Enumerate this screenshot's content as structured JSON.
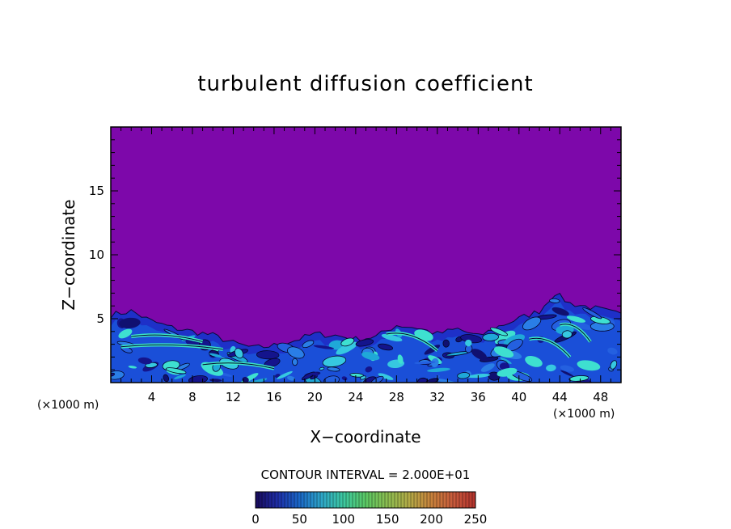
{
  "chart_data": {
    "type": "heatmap",
    "title": "turbulent diffusion coefficient",
    "xlabel": "X−coordinate",
    "ylabel": "Z−coordinate",
    "x_unit": "(×1000 m)",
    "y_unit": "(×1000 m)",
    "xlim": [
      0,
      50
    ],
    "ylim": [
      0,
      20
    ],
    "x_ticks": [
      4,
      8,
      12,
      16,
      20,
      24,
      28,
      32,
      36,
      40,
      44,
      48
    ],
    "y_ticks": [
      5,
      10,
      15
    ],
    "contour_interval_label": "CONTOUR INTERVAL = 2.000E+01",
    "colorbar": {
      "min": 0,
      "max": 250,
      "ticks": [
        0,
        50,
        100,
        150,
        200,
        250
      ],
      "colors": [
        "#180a5a",
        "#1e2ea8",
        "#1a68c8",
        "#2ea6c8",
        "#3cc8a0",
        "#5ac864",
        "#8cbe50",
        "#b4aa46",
        "#c8823c",
        "#c85a3c",
        "#b4322d"
      ]
    },
    "background_color": "#7d08aa",
    "turbulent_layer_top": {
      "x": [
        0,
        2,
        4,
        6,
        8,
        10,
        12,
        14,
        16,
        18,
        20,
        22,
        24,
        26,
        28,
        30,
        32,
        34,
        36,
        38,
        40,
        42,
        43.5,
        45,
        47,
        50
      ],
      "z": [
        5.3,
        5.6,
        4.8,
        4.3,
        4.0,
        3.7,
        3.1,
        2.7,
        2.9,
        3.3,
        3.8,
        3.7,
        3.4,
        3.6,
        4.5,
        4.3,
        3.8,
        4.2,
        3.6,
        4.4,
        5.0,
        5.6,
        7.0,
        6.2,
        5.9,
        5.3
      ]
    }
  }
}
